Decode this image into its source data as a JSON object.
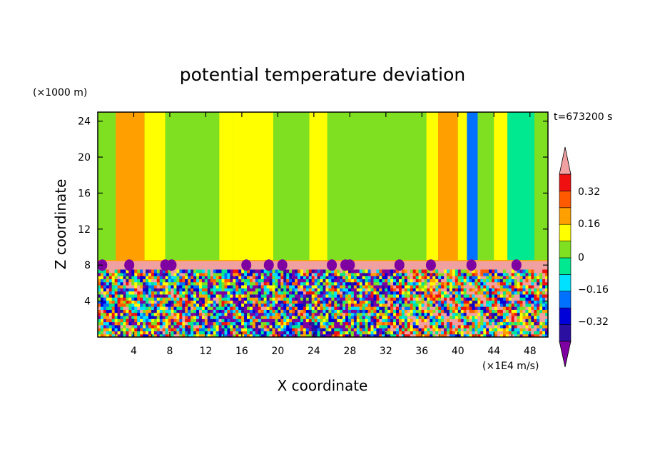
{
  "chart_data": {
    "type": "heatmap",
    "title": "potential temperature deviation",
    "time_label": "t=673200 s",
    "xlabel": "X coordinate",
    "ylabel": "Z coordinate",
    "x_unit": "(×1E4 m/s)",
    "y_unit": "(×1000 m)",
    "x_range": [
      0,
      50
    ],
    "y_range": [
      0,
      25
    ],
    "x_ticks": [
      "4",
      "8",
      "12",
      "16",
      "20",
      "24",
      "28",
      "32",
      "36",
      "40",
      "44",
      "48"
    ],
    "y_ticks": [
      "4",
      "8",
      "12",
      "16",
      "20",
      "24"
    ],
    "colorbar": {
      "levels": [
        -0.48,
        -0.4,
        -0.32,
        -0.24,
        -0.16,
        -0.08,
        0,
        0.08,
        0.16,
        0.24,
        0.32,
        0.4
      ],
      "labels": [
        "0.32",
        "0.16",
        "0",
        "−0.16",
        "−0.32"
      ],
      "colors": [
        "#7f00a0",
        "#2b0fa0",
        "#0000d8",
        "#0070ff",
        "#00e0ff",
        "#00e890",
        "#7ee020",
        "#ffff00",
        "#ffa000",
        "#ff5a00",
        "#f01010",
        "#f0a0a0"
      ]
    },
    "upper_layer_bands": [
      {
        "x0": 0,
        "x1": 0.8,
        "level": 0.04
      },
      {
        "x0": 0.8,
        "x1": 2,
        "level": 0.0
      },
      {
        "x0": 2,
        "x1": 5.2,
        "level": 0.16
      },
      {
        "x0": 5.2,
        "x1": 7.5,
        "level": 0.08
      },
      {
        "x0": 7.5,
        "x1": 13.5,
        "level": 0.0
      },
      {
        "x0": 13.5,
        "x1": 15,
        "level": 0.08
      },
      {
        "x0": 15,
        "x1": 19.5,
        "level": 0.08
      },
      {
        "x0": 19.5,
        "x1": 21.5,
        "level": 0.0
      },
      {
        "x0": 21.5,
        "x1": 23.5,
        "level": 0.0
      },
      {
        "x0": 23.5,
        "x1": 25.5,
        "level": 0.08
      },
      {
        "x0": 25.5,
        "x1": 26.5,
        "level": 0.0
      },
      {
        "x0": 26.5,
        "x1": 36.5,
        "level": 0.0
      },
      {
        "x0": 36.5,
        "x1": 37.8,
        "level": 0.08
      },
      {
        "x0": 37.8,
        "x1": 40,
        "level": 0.16
      },
      {
        "x0": 40,
        "x1": 41,
        "level": 0.08
      },
      {
        "x0": 41,
        "x1": 42.2,
        "level": -0.24
      },
      {
        "x0": 42.2,
        "x1": 44,
        "level": 0.0
      },
      {
        "x0": 44,
        "x1": 45.5,
        "level": 0.08
      },
      {
        "x0": 45.5,
        "x1": 48.5,
        "level": -0.08
      },
      {
        "x0": 48.5,
        "x1": 50,
        "level": 0.0
      }
    ],
    "inversion_layer": {
      "z0": 7.5,
      "z1": 8.5,
      "level": 0.4
    },
    "boundary_layer_top": 7.5
  }
}
